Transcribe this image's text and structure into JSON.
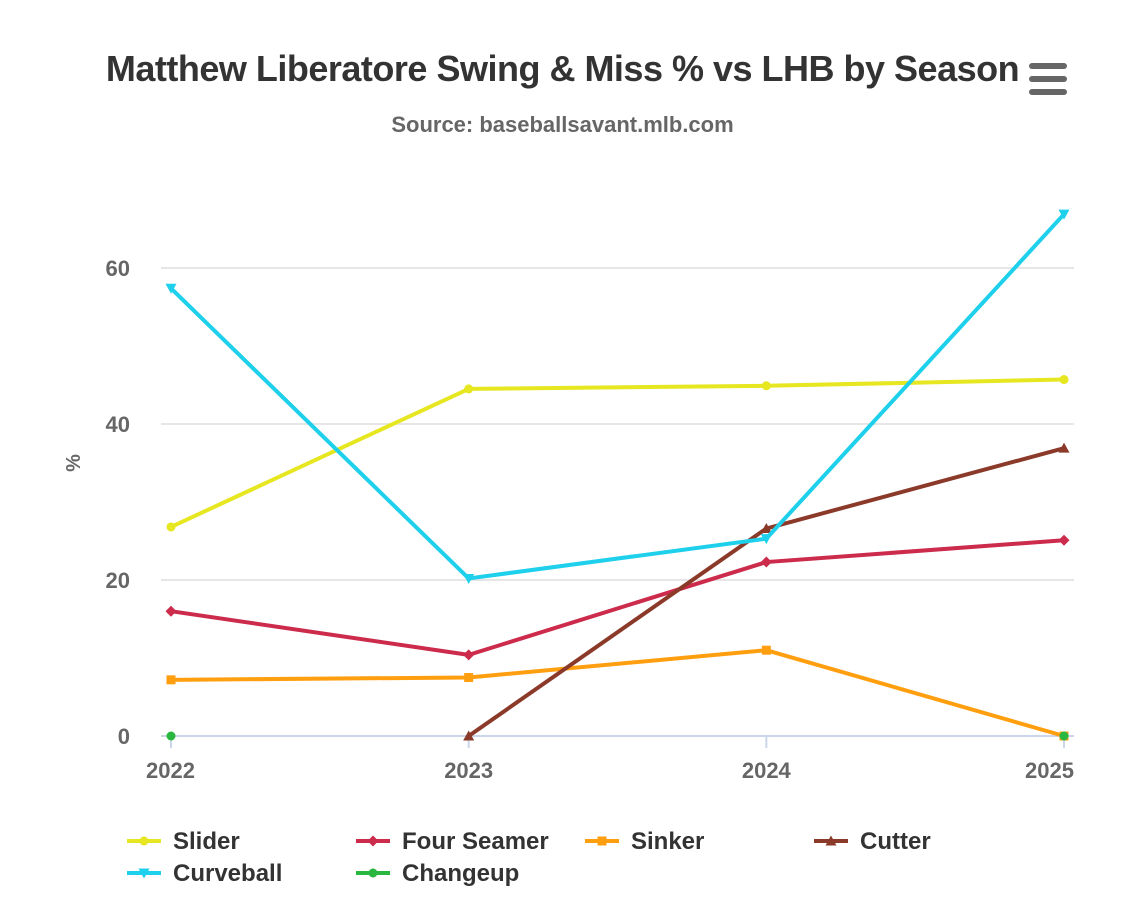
{
  "title": "Matthew Liberatore Swing & Miss % vs LHB by Season",
  "subtitle": "Source: baseballsavant.mlb.com",
  "menu": {
    "icon": "hamburger-menu-icon"
  },
  "chart_data": {
    "type": "line",
    "title": "Matthew Liberatore Swing & Miss % vs LHB by Season",
    "subtitle": "Source: baseballsavant.mlb.com",
    "xlabel": "",
    "ylabel": "%",
    "categories": [
      "2022",
      "2023",
      "2024",
      "2025"
    ],
    "ylim": [
      0,
      70
    ],
    "yticks": [
      0,
      20,
      40,
      60
    ],
    "grid": true,
    "legend_position": "bottom",
    "series": [
      {
        "name": "Slider",
        "color": "#e6e621",
        "marker": "circle",
        "values": [
          26.8,
          44.5,
          44.9,
          45.7
        ]
      },
      {
        "name": "Four Seamer",
        "color": "#cc2b4b",
        "marker": "diamond",
        "values": [
          16.0,
          10.4,
          22.3,
          25.1
        ]
      },
      {
        "name": "Sinker",
        "color": "#ff9f10",
        "marker": "square",
        "values": [
          7.2,
          7.5,
          11.0,
          0.0
        ]
      },
      {
        "name": "Cutter",
        "color": "#8b3a2a",
        "marker": "triangle",
        "values": [
          null,
          0.0,
          26.6,
          36.9
        ]
      },
      {
        "name": "Curveball",
        "color": "#1ed0eb",
        "marker": "triangle-down",
        "values": [
          57.4,
          20.2,
          25.3,
          66.9
        ]
      },
      {
        "name": "Changeup",
        "color": "#2ab73f",
        "marker": "circle",
        "values": [
          0.0,
          null,
          null,
          0.0
        ]
      }
    ]
  }
}
